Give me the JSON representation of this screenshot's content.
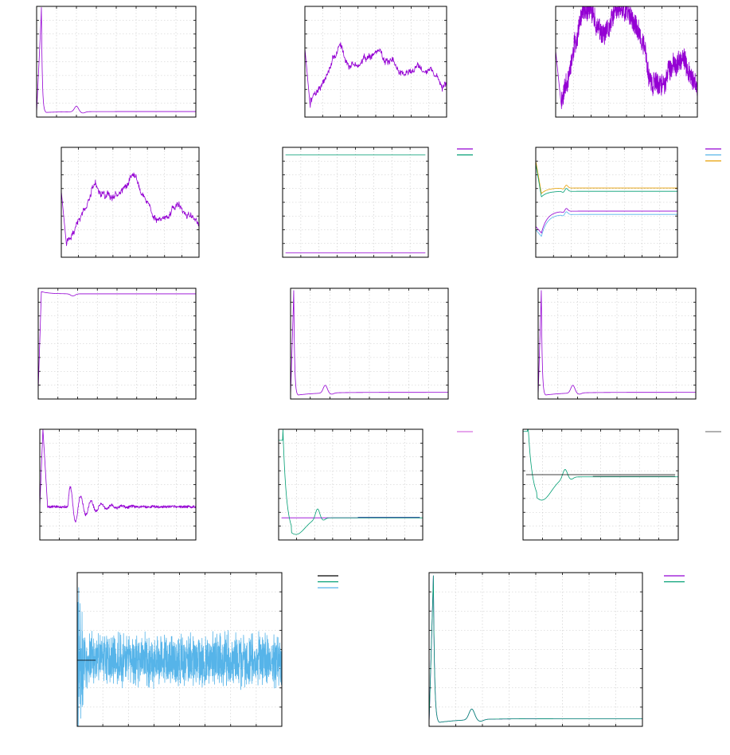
{
  "chart_data": [
    {
      "type": "line",
      "panel": 1,
      "grid": true,
      "series": [
        {
          "color": "#9400d3",
          "shape": "spike-decay",
          "params": {
            "x0": 0.03,
            "peak": 0.95,
            "base": 0.04,
            "bump": [
              0.25,
              0.05
            ],
            "final": 0.05
          }
        }
      ]
    },
    {
      "type": "line",
      "panel": 2,
      "grid": true,
      "series": [
        {
          "color": "#9400d3",
          "shape": "random-walk",
          "params": {
            "seed": 7,
            "start": 0.62,
            "drop": 0.06,
            "noise": 0.02,
            "n": 420
          }
        }
      ]
    },
    {
      "type": "line",
      "panel": 3,
      "grid": true,
      "series": [
        {
          "color": "#9400d3",
          "shape": "noisy-walk",
          "params": {
            "seed": 11,
            "start": 0.6,
            "drop": 0.1,
            "noise": 0.09,
            "n": 900
          }
        }
      ]
    },
    {
      "type": "line",
      "panel": 4,
      "grid": true,
      "series": [
        {
          "color": "#9400d3",
          "shape": "random-walk",
          "params": {
            "seed": 19,
            "start": 0.6,
            "drop": 0.08,
            "noise": 0.02,
            "n": 420
          }
        }
      ]
    },
    {
      "type": "line",
      "panel": 5,
      "grid": true,
      "legend": "top-right",
      "series": [
        {
          "color": "#009e73",
          "shape": "flat",
          "params": {
            "level": 0.93
          }
        },
        {
          "color": "#9400d3",
          "shape": "flat",
          "params": {
            "level": 0.04
          }
        }
      ]
    },
    {
      "type": "line",
      "panel": 6,
      "grid": true,
      "legend": "top-right",
      "series": [
        {
          "color": "#9400d3",
          "shape": "settle",
          "params": {
            "start": 0.28,
            "dip": 0.22,
            "level": 0.42,
            "bump": 0.46
          }
        },
        {
          "color": "#56b4e9",
          "shape": "settle",
          "params": {
            "start": 0.25,
            "dip": 0.19,
            "level": 0.39,
            "bump": 0.43
          }
        },
        {
          "color": "#e69f00",
          "shape": "settle",
          "params": {
            "start": 0.88,
            "dip": 0.58,
            "level": 0.63,
            "bump": 0.67
          }
        },
        {
          "color": "#009e73",
          "shape": "settle",
          "params": {
            "start": 0.85,
            "dip": 0.55,
            "level": 0.6,
            "bump": 0.64
          }
        }
      ]
    },
    {
      "type": "line",
      "panel": 7,
      "grid": true,
      "series": [
        {
          "color": "#9400d3",
          "shape": "rise-plateau",
          "params": {
            "start": 0.08,
            "level": 0.97,
            "dip": 0.93,
            "final": 0.95
          }
        }
      ]
    },
    {
      "type": "line",
      "panel": 8,
      "grid": true,
      "series": [
        {
          "color": "#9400d3",
          "shape": "spike-decay",
          "params": {
            "x0": 0.02,
            "peak": 0.95,
            "base": 0.03,
            "bump": [
              0.22,
              0.07
            ],
            "final": 0.06
          }
        }
      ]
    },
    {
      "type": "line",
      "panel": 9,
      "grid": true,
      "series": [
        {
          "color": "#9400d3",
          "shape": "spike-decay",
          "params": {
            "x0": 0.02,
            "peak": 0.95,
            "base": 0.03,
            "bump": [
              0.22,
              0.07
            ],
            "final": 0.06
          }
        }
      ]
    },
    {
      "type": "line",
      "panel": 10,
      "grid": true,
      "series": [
        {
          "color": "#9400d3",
          "shape": "ringing",
          "params": {
            "x0": 0.02,
            "peak": 1.0,
            "level": 0.3,
            "amp": 0.17,
            "noise": 0.012
          }
        }
      ]
    },
    {
      "type": "line",
      "panel": 11,
      "grid": true,
      "legend": "top-right",
      "series": [
        {
          "color": "#9400d3",
          "shape": "flat",
          "params": {
            "level": 0.2
          }
        },
        {
          "color": "#009e73",
          "shape": "underdamped",
          "params": {
            "start": 0.9,
            "min": 0.05,
            "level": 0.2,
            "bump": 0.29
          }
        },
        {
          "color": "#0b3b8c",
          "shape": "flat-tail",
          "params": {
            "from": 0.55,
            "level": 0.205
          }
        }
      ]
    },
    {
      "type": "line",
      "panel": 12,
      "grid": true,
      "legend": "top-right",
      "series": [
        {
          "color": "#009e73",
          "shape": "underdamped",
          "params": {
            "start": 0.98,
            "min": 0.36,
            "level": 0.57,
            "bump": 0.65
          }
        },
        {
          "color": "#000000",
          "shape": "flat",
          "params": {
            "level": 0.59
          }
        },
        {
          "color": "#606060",
          "shape": "flat-tail",
          "params": {
            "from": 0.45,
            "level": 0.575
          }
        }
      ]
    },
    {
      "type": "line",
      "panel": 13,
      "grid": true,
      "legend": "top-right",
      "series": [
        {
          "color": "#56b4e9",
          "shape": "noise-band",
          "params": {
            "seed": 31,
            "level": 0.43,
            "amp": 0.17,
            "n": 1400
          }
        },
        {
          "color": "#000000",
          "shape": "flat-short",
          "params": {
            "level": 0.43,
            "to": 0.09
          }
        }
      ]
    },
    {
      "type": "line",
      "panel": 14,
      "grid": true,
      "legend": "top-right",
      "series": [
        {
          "color": "#9400d3",
          "shape": "spike-decay",
          "params": {
            "x0": 0.02,
            "peak": 0.96,
            "base": 0.02,
            "bump": [
              0.2,
              0.07
            ],
            "final": 0.05
          }
        },
        {
          "color": "#009e73",
          "shape": "spike-decay",
          "params": {
            "x0": 0.02,
            "peak": 0.96,
            "base": 0.02,
            "bump": [
              0.2,
              0.07
            ],
            "final": 0.05
          }
        }
      ]
    }
  ],
  "legends": [
    {
      "panel": 5,
      "colors": [
        "#9400d3",
        "#009e73"
      ]
    },
    {
      "panel": 6,
      "colors": [
        "#9400d3",
        "#56b4e9",
        "#e69f00"
      ]
    },
    {
      "panel": 11,
      "colors": [
        "#d870e0"
      ]
    },
    {
      "panel": 12,
      "colors": [
        "#808080"
      ]
    },
    {
      "panel": 13,
      "colors": [
        "#000000",
        "#009e73",
        "#56b4e9"
      ]
    },
    {
      "panel": 14,
      "colors": [
        "#9400d3",
        "#009e73"
      ]
    }
  ]
}
